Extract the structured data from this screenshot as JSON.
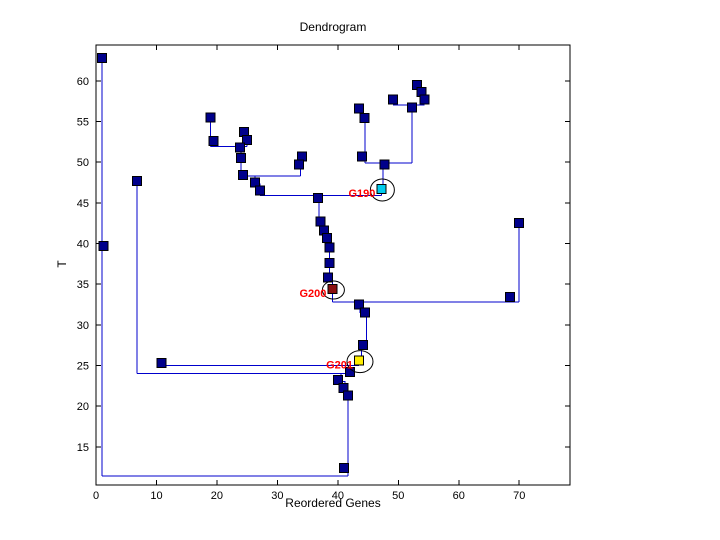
{
  "figure": {
    "title": "Dendrogram",
    "xlabel": "Reordered Genes",
    "ylabel": "T"
  },
  "chart_data": {
    "type": "line",
    "subtype": "dendrogram",
    "title": "Dendrogram",
    "xlabel": "Reordered Genes",
    "ylabel": "T",
    "xlim": [
      0,
      78.4
    ],
    "ylim": [
      10.3,
      64.4
    ],
    "xticks": [
      0,
      10,
      20,
      30,
      40,
      50,
      60,
      70
    ],
    "yticks": [
      15,
      20,
      25,
      30,
      35,
      40,
      45,
      50,
      55,
      60
    ],
    "grid": false,
    "legend": null,
    "line_color": "#0000CC",
    "node_color": "#00008B",
    "node_edge_color": "#000000",
    "label_color": "#FF0000",
    "axis_color": "#000000",
    "nodes": [
      [
        1.0,
        62.8
      ],
      [
        1.2,
        39.7
      ],
      [
        6.8,
        47.7
      ],
      [
        10.8,
        25.3
      ],
      [
        18.9,
        55.5
      ],
      [
        19.4,
        52.6
      ],
      [
        24.5,
        53.7
      ],
      [
        25.0,
        52.7
      ],
      [
        23.8,
        51.8
      ],
      [
        24.0,
        50.5
      ],
      [
        24.3,
        48.4
      ],
      [
        26.3,
        47.5
      ],
      [
        27.1,
        46.5
      ],
      [
        34.1,
        50.7
      ],
      [
        33.6,
        49.7
      ],
      [
        43.5,
        56.6
      ],
      [
        44.4,
        55.4
      ],
      [
        49.1,
        57.7
      ],
      [
        52.3,
        56.7
      ],
      [
        53.1,
        59.5
      ],
      [
        53.8,
        58.6
      ],
      [
        54.3,
        57.7
      ],
      [
        44.0,
        50.7
      ],
      [
        47.7,
        49.7
      ],
      [
        36.7,
        45.6
      ],
      [
        37.1,
        42.7
      ],
      [
        37.7,
        41.6
      ],
      [
        38.2,
        40.7
      ],
      [
        38.6,
        39.5
      ],
      [
        38.6,
        37.6
      ],
      [
        38.4,
        35.8
      ],
      [
        70.0,
        42.5
      ],
      [
        68.5,
        33.4
      ],
      [
        43.5,
        32.5
      ],
      [
        44.5,
        31.5
      ],
      [
        44.2,
        27.5
      ],
      [
        42.0,
        24.2
      ],
      [
        40.0,
        23.2
      ],
      [
        40.9,
        22.2
      ],
      [
        41.7,
        21.3
      ],
      [
        41.0,
        12.4
      ]
    ],
    "segments": [
      [
        [
          1.0,
          62.8
        ],
        [
          1.0,
          11.4
        ]
      ],
      [
        [
          1.0,
          11.4
        ],
        [
          41.7,
          11.4
        ]
      ],
      [
        [
          41.7,
          11.4
        ],
        [
          41.7,
          21.7
        ]
      ],
      [
        [
          41.7,
          21.7
        ],
        [
          41.2,
          21.7
        ],
        [
          41.2,
          23.0
        ],
        [
          40.5,
          23.0
        ],
        [
          40.5,
          24.0
        ]
      ],
      [
        [
          6.8,
          47.7
        ],
        [
          6.8,
          24.0
        ]
      ],
      [
        [
          6.8,
          24.0
        ],
        [
          42.0,
          24.0
        ]
      ],
      [
        [
          42.0,
          25.0
        ],
        [
          42.0,
          24.0
        ]
      ],
      [
        [
          10.8,
          25.0
        ],
        [
          43.5,
          25.0
        ]
      ],
      [
        [
          43.5,
          25.6
        ],
        [
          43.5,
          25.0
        ]
      ],
      [
        [
          18.9,
          55.3
        ],
        [
          18.9,
          51.9
        ]
      ],
      [
        [
          18.9,
          51.9
        ],
        [
          25.0,
          51.9
        ]
      ],
      [
        [
          25.0,
          53.5
        ],
        [
          25.0,
          51.9
        ]
      ],
      [
        [
          24.0,
          51.9
        ],
        [
          24.0,
          48.3
        ]
      ],
      [
        [
          24.0,
          48.3
        ],
        [
          33.8,
          48.3
        ]
      ],
      [
        [
          33.8,
          49.6
        ],
        [
          33.8,
          48.3
        ]
      ],
      [
        [
          33.9,
          50.5
        ],
        [
          33.9,
          49.6
        ]
      ],
      [
        [
          26.3,
          48.3
        ],
        [
          26.3,
          47.3
        ],
        [
          27.1,
          47.3
        ],
        [
          27.1,
          45.9
        ]
      ],
      [
        [
          27.1,
          45.9
        ],
        [
          47.2,
          45.9
        ]
      ],
      [
        [
          47.2,
          46.7
        ],
        [
          47.2,
          45.9
        ]
      ],
      [
        [
          36.9,
          45.9
        ],
        [
          36.9,
          42.4
        ],
        [
          37.7,
          42.4
        ],
        [
          37.7,
          40.4
        ],
        [
          38.6,
          40.4
        ],
        [
          38.6,
          35.3
        ],
        [
          39.1,
          35.3
        ],
        [
          39.1,
          34.4
        ]
      ],
      [
        [
          39.1,
          34.4
        ],
        [
          39.1,
          32.8
        ]
      ],
      [
        [
          39.1,
          32.8
        ],
        [
          70.0,
          32.8
        ]
      ],
      [
        [
          70.0,
          42.0
        ],
        [
          70.0,
          32.8
        ]
      ],
      [
        [
          43.7,
          32.8
        ],
        [
          43.7,
          31.5
        ],
        [
          44.7,
          31.5
        ],
        [
          44.7,
          27.3
        ],
        [
          43.9,
          27.3
        ],
        [
          43.9,
          25.6
        ]
      ],
      [
        [
          43.9,
          56.3
        ],
        [
          43.9,
          55.4
        ],
        [
          44.5,
          55.4
        ]
      ],
      [
        [
          44.5,
          55.6
        ],
        [
          44.5,
          49.9
        ]
      ],
      [
        [
          44.5,
          49.9
        ],
        [
          52.3,
          49.9
        ]
      ],
      [
        [
          52.3,
          57.0
        ],
        [
          52.3,
          49.9
        ]
      ],
      [
        [
          49.1,
          57.0
        ],
        [
          54.3,
          57.0
        ]
      ],
      [
        [
          53.6,
          59.3
        ],
        [
          53.6,
          57.0
        ]
      ],
      [
        [
          47.5,
          49.9
        ],
        [
          47.5,
          46.7
        ]
      ]
    ],
    "labeled_points": [
      {
        "label": "G190",
        "x": 47.2,
        "y": 46.7,
        "marker_color": "#00CCEE",
        "circle_rx": 12,
        "circle_ry": 11
      },
      {
        "label": "G200",
        "x": 39.1,
        "y": 34.4,
        "marker_color": "#8B1010",
        "circle_rx": 11,
        "circle_ry": 9
      },
      {
        "label": "G201",
        "x": 43.5,
        "y": 25.6,
        "marker_color": "#FFEE00",
        "circle_rx": 13,
        "circle_ry": 11
      }
    ]
  }
}
